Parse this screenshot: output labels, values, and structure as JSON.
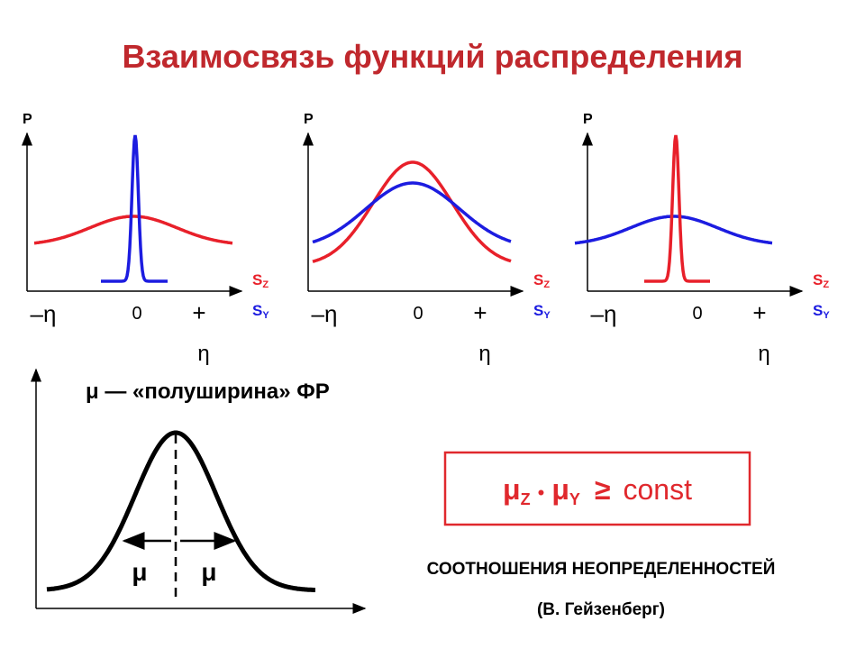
{
  "title": "Взаимосвязь функций распределения",
  "panels": [
    {
      "axis_label": "P",
      "legend": [
        {
          "letter": "S",
          "sub": "Z"
        },
        {
          "letter": "S",
          "sub": "Y"
        }
      ],
      "ticks": [
        "–η",
        "0",
        "+",
        "η"
      ]
    },
    {
      "axis_label": "P",
      "legend": [
        {
          "letter": "S",
          "sub": "Z"
        },
        {
          "letter": "S",
          "sub": "Y"
        }
      ],
      "ticks": [
        "–η",
        "0",
        "+",
        "η"
      ]
    },
    {
      "axis_label": "P",
      "legend": [
        {
          "letter": "S",
          "sub": "Z"
        },
        {
          "letter": "S",
          "sub": "Y"
        }
      ],
      "ticks": [
        "–η",
        "0",
        "+",
        "η"
      ]
    }
  ],
  "halfwidth": {
    "heading": "μ — «полуширина» ФР",
    "left_label": "μ",
    "right_label": "μ"
  },
  "formula": {
    "mu1": "μ",
    "sub1": "Z",
    "dot": "•",
    "mu2": "μ",
    "sub2": "Y",
    "relation": "≥",
    "rhs": "const"
  },
  "caption": "СООТНОШЕНИЯ НЕОПРЕДЕЛЕННОСТЕЙ",
  "author": "(В. Гейзенберг)"
}
